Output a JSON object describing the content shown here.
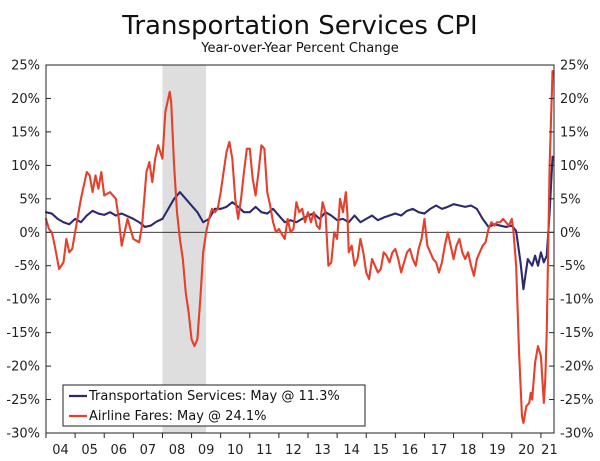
{
  "chart_data": {
    "type": "line",
    "title": "Transportation Services CPI",
    "subtitle": "Year-over-Year Percent Change",
    "xlabel": "",
    "ylabel": "",
    "x_range": [
      2004.0,
      2021.45
    ],
    "ylim": [
      -30,
      25
    ],
    "y_ticks": [
      25,
      20,
      15,
      10,
      5,
      0,
      -5,
      -10,
      -15,
      -20,
      -25,
      -30
    ],
    "y_tick_labels": [
      "25%",
      "20%",
      "15%",
      "10%",
      "5%",
      "0%",
      "-5%",
      "-10%",
      "-15%",
      "-20%",
      "-25%",
      "-30%"
    ],
    "x_tick_labels": [
      "04",
      "05",
      "06",
      "07",
      "08",
      "09",
      "10",
      "11",
      "12",
      "13",
      "14",
      "15",
      "16",
      "17",
      "18",
      "19",
      "20",
      "21"
    ],
    "x_tick_positions": [
      2004,
      2005,
      2006,
      2007,
      2008,
      2009,
      2010,
      2011,
      2012,
      2013,
      2014,
      2015,
      2016,
      2017,
      2018,
      2019,
      2020,
      2021
    ],
    "grid": false,
    "recession_band": [
      2008.0,
      2009.5
    ],
    "zero_line": true,
    "legend_position": "bottom-left",
    "series": [
      {
        "name": "Transportation Services: May @ 11.3%",
        "color": "#2b2a6e",
        "points": [
          [
            2004.0,
            3.0
          ],
          [
            2004.2,
            2.8
          ],
          [
            2004.4,
            2.0
          ],
          [
            2004.6,
            1.5
          ],
          [
            2004.8,
            1.2
          ],
          [
            2005.0,
            2.0
          ],
          [
            2005.2,
            1.5
          ],
          [
            2005.4,
            2.5
          ],
          [
            2005.6,
            3.2
          ],
          [
            2005.8,
            2.8
          ],
          [
            2006.0,
            2.6
          ],
          [
            2006.2,
            3.0
          ],
          [
            2006.4,
            2.5
          ],
          [
            2006.6,
            2.8
          ],
          [
            2006.8,
            2.4
          ],
          [
            2007.0,
            2.0
          ],
          [
            2007.2,
            1.5
          ],
          [
            2007.4,
            0.8
          ],
          [
            2007.6,
            1.0
          ],
          [
            2007.8,
            1.6
          ],
          [
            2008.0,
            2.0
          ],
          [
            2008.2,
            3.5
          ],
          [
            2008.4,
            5.0
          ],
          [
            2008.6,
            6.0
          ],
          [
            2008.8,
            5.0
          ],
          [
            2009.0,
            4.0
          ],
          [
            2009.2,
            3.0
          ],
          [
            2009.4,
            1.5
          ],
          [
            2009.6,
            2.0
          ],
          [
            2009.8,
            3.5
          ],
          [
            2010.0,
            3.5
          ],
          [
            2010.2,
            3.8
          ],
          [
            2010.4,
            4.5
          ],
          [
            2010.6,
            3.8
          ],
          [
            2010.8,
            3.0
          ],
          [
            2011.0,
            3.0
          ],
          [
            2011.2,
            3.8
          ],
          [
            2011.4,
            3.0
          ],
          [
            2011.6,
            2.8
          ],
          [
            2011.8,
            3.5
          ],
          [
            2012.0,
            2.5
          ],
          [
            2012.2,
            1.5
          ],
          [
            2012.4,
            1.8
          ],
          [
            2012.6,
            1.5
          ],
          [
            2012.8,
            2.0
          ],
          [
            2013.0,
            2.5
          ],
          [
            2013.2,
            2.8
          ],
          [
            2013.4,
            2.0
          ],
          [
            2013.6,
            3.0
          ],
          [
            2013.8,
            2.5
          ],
          [
            2014.0,
            1.8
          ],
          [
            2014.2,
            2.0
          ],
          [
            2014.4,
            1.5
          ],
          [
            2014.6,
            2.5
          ],
          [
            2014.8,
            1.5
          ],
          [
            2015.0,
            2.0
          ],
          [
            2015.2,
            2.5
          ],
          [
            2015.4,
            1.8
          ],
          [
            2015.6,
            2.2
          ],
          [
            2015.8,
            2.5
          ],
          [
            2016.0,
            2.8
          ],
          [
            2016.2,
            2.5
          ],
          [
            2016.4,
            3.2
          ],
          [
            2016.6,
            3.5
          ],
          [
            2016.8,
            3.0
          ],
          [
            2017.0,
            2.8
          ],
          [
            2017.2,
            3.5
          ],
          [
            2017.4,
            4.0
          ],
          [
            2017.6,
            3.5
          ],
          [
            2017.8,
            3.8
          ],
          [
            2018.0,
            4.2
          ],
          [
            2018.2,
            4.0
          ],
          [
            2018.4,
            3.8
          ],
          [
            2018.6,
            4.0
          ],
          [
            2018.8,
            3.5
          ],
          [
            2019.0,
            2.0
          ],
          [
            2019.2,
            0.8
          ],
          [
            2019.4,
            1.2
          ],
          [
            2019.6,
            1.0
          ],
          [
            2019.8,
            0.8
          ],
          [
            2020.0,
            1.0
          ],
          [
            2020.15,
            0.2
          ],
          [
            2020.3,
            -4.5
          ],
          [
            2020.4,
            -8.5
          ],
          [
            2020.55,
            -4.0
          ],
          [
            2020.7,
            -5.0
          ],
          [
            2020.8,
            -3.5
          ],
          [
            2020.9,
            -5.0
          ],
          [
            2021.0,
            -3.0
          ],
          [
            2021.1,
            -4.5
          ],
          [
            2021.2,
            -3.5
          ],
          [
            2021.3,
            3.0
          ],
          [
            2021.4,
            11.3
          ]
        ]
      },
      {
        "name": "Airline Fares: May @ 24.1%",
        "color": "#e4402b",
        "points": [
          [
            2004.0,
            2.0
          ],
          [
            2004.1,
            0.5
          ],
          [
            2004.2,
            0.0
          ],
          [
            2004.3,
            -2.0
          ],
          [
            2004.45,
            -5.5
          ],
          [
            2004.6,
            -4.5
          ],
          [
            2004.7,
            -1.0
          ],
          [
            2004.8,
            -3.0
          ],
          [
            2004.9,
            -2.5
          ],
          [
            2005.0,
            0.0
          ],
          [
            2005.2,
            5.0
          ],
          [
            2005.4,
            9.0
          ],
          [
            2005.5,
            8.5
          ],
          [
            2005.6,
            6.0
          ],
          [
            2005.7,
            8.5
          ],
          [
            2005.8,
            6.5
          ],
          [
            2005.9,
            9.0
          ],
          [
            2006.0,
            5.5
          ],
          [
            2006.2,
            6.0
          ],
          [
            2006.4,
            5.0
          ],
          [
            2006.5,
            2.0
          ],
          [
            2006.6,
            -2.0
          ],
          [
            2006.7,
            0.0
          ],
          [
            2006.8,
            2.0
          ],
          [
            2006.9,
            0.5
          ],
          [
            2007.0,
            -1.0
          ],
          [
            2007.2,
            -1.5
          ],
          [
            2007.3,
            1.0
          ],
          [
            2007.45,
            9.0
          ],
          [
            2007.55,
            10.5
          ],
          [
            2007.65,
            7.5
          ],
          [
            2007.75,
            11.0
          ],
          [
            2007.85,
            13.0
          ],
          [
            2008.0,
            11.0
          ],
          [
            2008.1,
            18.0
          ],
          [
            2008.2,
            20.0
          ],
          [
            2008.25,
            21.0
          ],
          [
            2008.3,
            19.5
          ],
          [
            2008.4,
            10.0
          ],
          [
            2008.5,
            3.0
          ],
          [
            2008.6,
            -1.0
          ],
          [
            2008.7,
            -4.0
          ],
          [
            2008.8,
            -9.0
          ],
          [
            2008.9,
            -12.0
          ],
          [
            2009.0,
            -16.0
          ],
          [
            2009.1,
            -17.0
          ],
          [
            2009.2,
            -16.0
          ],
          [
            2009.3,
            -10.0
          ],
          [
            2009.4,
            -3.0
          ],
          [
            2009.5,
            0.0
          ],
          [
            2009.6,
            2.0
          ],
          [
            2009.7,
            3.5
          ],
          [
            2009.8,
            3.0
          ],
          [
            2009.9,
            3.5
          ],
          [
            2010.0,
            6.0
          ],
          [
            2010.1,
            9.0
          ],
          [
            2010.2,
            12.0
          ],
          [
            2010.3,
            13.5
          ],
          [
            2010.4,
            11.0
          ],
          [
            2010.5,
            5.0
          ],
          [
            2010.6,
            2.0
          ],
          [
            2010.7,
            5.0
          ],
          [
            2010.8,
            9.0
          ],
          [
            2010.9,
            12.5
          ],
          [
            2011.0,
            12.5
          ],
          [
            2011.1,
            8.0
          ],
          [
            2011.2,
            5.5
          ],
          [
            2011.3,
            9.0
          ],
          [
            2011.4,
            13.0
          ],
          [
            2011.5,
            12.5
          ],
          [
            2011.6,
            6.0
          ],
          [
            2011.7,
            4.0
          ],
          [
            2011.8,
            1.5
          ],
          [
            2011.9,
            0.0
          ],
          [
            2012.0,
            0.5
          ],
          [
            2012.2,
            -1.0
          ],
          [
            2012.3,
            2.0
          ],
          [
            2012.4,
            0.0
          ],
          [
            2012.5,
            0.5
          ],
          [
            2012.6,
            4.5
          ],
          [
            2012.7,
            3.0
          ],
          [
            2012.8,
            3.5
          ],
          [
            2012.9,
            1.5
          ],
          [
            2013.0,
            3.0
          ],
          [
            2013.1,
            1.5
          ],
          [
            2013.2,
            3.0
          ],
          [
            2013.3,
            1.0
          ],
          [
            2013.4,
            0.5
          ],
          [
            2013.5,
            4.5
          ],
          [
            2013.6,
            3.0
          ],
          [
            2013.7,
            -5.0
          ],
          [
            2013.8,
            -4.5
          ],
          [
            2013.9,
            0.0
          ],
          [
            2014.0,
            -1.0
          ],
          [
            2014.1,
            5.0
          ],
          [
            2014.2,
            3.0
          ],
          [
            2014.3,
            6.0
          ],
          [
            2014.35,
            3.0
          ],
          [
            2014.4,
            -3.0
          ],
          [
            2014.5,
            -2.0
          ],
          [
            2014.6,
            -5.0
          ],
          [
            2014.7,
            -4.0
          ],
          [
            2014.8,
            -1.0
          ],
          [
            2014.9,
            -3.0
          ],
          [
            2015.0,
            -6.0
          ],
          [
            2015.1,
            -7.0
          ],
          [
            2015.2,
            -4.0
          ],
          [
            2015.3,
            -5.0
          ],
          [
            2015.4,
            -6.0
          ],
          [
            2015.5,
            -5.5
          ],
          [
            2015.6,
            -3.0
          ],
          [
            2015.7,
            -3.5
          ],
          [
            2015.8,
            -4.5
          ],
          [
            2015.9,
            -3.0
          ],
          [
            2016.0,
            -2.5
          ],
          [
            2016.1,
            -4.0
          ],
          [
            2016.2,
            -6.0
          ],
          [
            2016.3,
            -4.5
          ],
          [
            2016.4,
            -3.0
          ],
          [
            2016.5,
            -2.5
          ],
          [
            2016.6,
            -4.0
          ],
          [
            2016.7,
            -5.0
          ],
          [
            2016.8,
            -2.5
          ],
          [
            2016.9,
            -1.0
          ],
          [
            2017.0,
            2.0
          ],
          [
            2017.1,
            -2.0
          ],
          [
            2017.2,
            -3.0
          ],
          [
            2017.3,
            -4.0
          ],
          [
            2017.4,
            -4.5
          ],
          [
            2017.5,
            -6.0
          ],
          [
            2017.6,
            -4.5
          ],
          [
            2017.7,
            -2.0
          ],
          [
            2017.8,
            0.0
          ],
          [
            2017.9,
            -2.0
          ],
          [
            2018.0,
            -4.0
          ],
          [
            2018.1,
            -2.0
          ],
          [
            2018.2,
            -1.0
          ],
          [
            2018.3,
            -3.0
          ],
          [
            2018.4,
            -4.0
          ],
          [
            2018.5,
            -3.0
          ],
          [
            2018.6,
            -5.0
          ],
          [
            2018.7,
            -6.5
          ],
          [
            2018.8,
            -4.0
          ],
          [
            2018.9,
            -3.0
          ],
          [
            2019.0,
            -2.0
          ],
          [
            2019.1,
            -1.5
          ],
          [
            2019.2,
            0.5
          ],
          [
            2019.3,
            1.5
          ],
          [
            2019.4,
            1.0
          ],
          [
            2019.5,
            1.5
          ],
          [
            2019.6,
            1.5
          ],
          [
            2019.7,
            2.0
          ],
          [
            2019.8,
            1.5
          ],
          [
            2019.9,
            1.0
          ],
          [
            2020.0,
            2.0
          ],
          [
            2020.05,
            0.5
          ],
          [
            2020.15,
            -5.0
          ],
          [
            2020.25,
            -18.0
          ],
          [
            2020.35,
            -27.5
          ],
          [
            2020.4,
            -28.5
          ],
          [
            2020.5,
            -26.0
          ],
          [
            2020.6,
            -25.5
          ],
          [
            2020.65,
            -24.0
          ],
          [
            2020.7,
            -25.0
          ],
          [
            2020.8,
            -19.5
          ],
          [
            2020.9,
            -17.0
          ],
          [
            2021.0,
            -18.5
          ],
          [
            2021.1,
            -25.5
          ],
          [
            2021.15,
            -22.0
          ],
          [
            2021.2,
            -15.0
          ],
          [
            2021.3,
            10.0
          ],
          [
            2021.4,
            24.1
          ]
        ]
      }
    ]
  }
}
